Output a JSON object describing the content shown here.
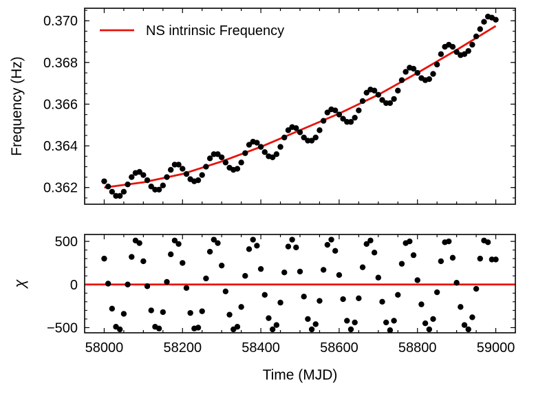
{
  "chart_data": [
    {
      "type": "line",
      "xlabel": "",
      "ylabel": "Frequency (Hz)",
      "xlim": [
        57950,
        59050
      ],
      "ylim": [
        0.3612,
        0.3706
      ],
      "yticks": [
        0.362,
        0.364,
        0.366,
        0.368,
        0.37
      ],
      "ytick_labels": [
        "0.362",
        "0.364",
        "0.366",
        "0.368",
        "0.370"
      ],
      "legend": {
        "position": "top-left",
        "entries": [
          "NS intrinsic Frequency"
        ]
      },
      "grid": false,
      "series": [
        {
          "name": "NS intrinsic Frequency",
          "kind": "line",
          "color": "#e8120c",
          "x": [
            58000,
            58100,
            58200,
            58300,
            58400,
            58500,
            58600,
            58700,
            58800,
            58900,
            59000
          ],
          "y": [
            0.362,
            0.36225,
            0.36265,
            0.36325,
            0.36395,
            0.36475,
            0.36555,
            0.36645,
            0.3675,
            0.3686,
            0.36975
          ]
        },
        {
          "kind": "scatter",
          "color": "#000000",
          "x": [
            58000,
            58010,
            58020,
            58030,
            58040,
            58050,
            58060,
            58070,
            58080,
            58090,
            58100,
            58110,
            58120,
            58130,
            58140,
            58150,
            58160,
            58170,
            58180,
            58190,
            58200,
            58210,
            58220,
            58230,
            58240,
            58250,
            58260,
            58270,
            58280,
            58290,
            58300,
            58310,
            58320,
            58330,
            58340,
            58350,
            58360,
            58370,
            58380,
            58390,
            58400,
            58410,
            58420,
            58430,
            58440,
            58450,
            58460,
            58470,
            58480,
            58490,
            58500,
            58510,
            58520,
            58530,
            58540,
            58550,
            58560,
            58570,
            58580,
            58590,
            58600,
            58610,
            58620,
            58630,
            58640,
            58650,
            58660,
            58670,
            58680,
            58690,
            58700,
            58710,
            58720,
            58730,
            58740,
            58750,
            58760,
            58770,
            58780,
            58790,
            58800,
            58810,
            58820,
            58830,
            58840,
            58850,
            58860,
            58870,
            58880,
            58890,
            58900,
            58910,
            58920,
            58930,
            58940,
            58950,
            58960,
            58970,
            58980,
            58990,
            59000
          ],
          "y": [
            0.3623,
            0.36205,
            0.3618,
            0.3616,
            0.3616,
            0.3618,
            0.36215,
            0.3625,
            0.3627,
            0.36275,
            0.3626,
            0.36235,
            0.36205,
            0.3619,
            0.3619,
            0.3621,
            0.3625,
            0.36285,
            0.3631,
            0.3631,
            0.3629,
            0.36265,
            0.3624,
            0.3623,
            0.36235,
            0.3626,
            0.363,
            0.3634,
            0.3636,
            0.3636,
            0.36345,
            0.3632,
            0.36295,
            0.36285,
            0.3629,
            0.3632,
            0.36365,
            0.36405,
            0.3642,
            0.36415,
            0.36395,
            0.3637,
            0.3635,
            0.36345,
            0.3636,
            0.36395,
            0.3644,
            0.36475,
            0.3649,
            0.36485,
            0.36465,
            0.3644,
            0.36425,
            0.36425,
            0.3644,
            0.36475,
            0.3652,
            0.3656,
            0.36575,
            0.3657,
            0.3655,
            0.3653,
            0.36515,
            0.36515,
            0.36535,
            0.3657,
            0.36615,
            0.36655,
            0.3667,
            0.36665,
            0.36645,
            0.3662,
            0.36605,
            0.36605,
            0.36625,
            0.36665,
            0.36715,
            0.36755,
            0.36775,
            0.3677,
            0.3675,
            0.36725,
            0.36715,
            0.3672,
            0.36745,
            0.3679,
            0.3684,
            0.36875,
            0.36885,
            0.36875,
            0.3685,
            0.36835,
            0.3684,
            0.36855,
            0.36885,
            0.36925,
            0.3696,
            0.36995,
            0.3702,
            0.37015,
            0.37005
          ]
        }
      ]
    },
    {
      "type": "scatter",
      "xlabel": "Time (MJD)",
      "ylabel": "χ",
      "xlim": [
        57950,
        59050
      ],
      "ylim": [
        -560,
        580
      ],
      "xticks": [
        58000,
        58200,
        58400,
        58600,
        58800,
        59000
      ],
      "xtick_labels": [
        "58000",
        "58200",
        "58400",
        "58600",
        "58800",
        "59000"
      ],
      "yticks": [
        -500,
        0,
        500
      ],
      "ytick_labels": [
        "−500",
        "0",
        "500"
      ],
      "grid": false,
      "hline": {
        "y": 0,
        "color": "#e8120c"
      },
      "series": [
        {
          "kind": "scatter",
          "color": "#000000",
          "x": [
            58000,
            58010,
            58020,
            58030,
            58040,
            58050,
            58060,
            58070,
            58080,
            58090,
            58100,
            58110,
            58120,
            58130,
            58140,
            58150,
            58160,
            58170,
            58180,
            58190,
            58200,
            58210,
            58220,
            58230,
            58240,
            58250,
            58260,
            58270,
            58280,
            58290,
            58300,
            58310,
            58320,
            58330,
            58340,
            58350,
            58360,
            58370,
            58380,
            58390,
            58400,
            58410,
            58420,
            58430,
            58440,
            58450,
            58460,
            58470,
            58480,
            58490,
            58500,
            58510,
            58520,
            58530,
            58540,
            58550,
            58560,
            58570,
            58580,
            58590,
            58600,
            58610,
            58620,
            58630,
            58640,
            58650,
            58660,
            58670,
            58680,
            58690,
            58700,
            58710,
            58720,
            58730,
            58740,
            58750,
            58760,
            58770,
            58780,
            58790,
            58800,
            58810,
            58820,
            58830,
            58840,
            58850,
            58860,
            58870,
            58880,
            58890,
            58900,
            58910,
            58920,
            58930,
            58940,
            58950,
            58960,
            58970,
            58980,
            58990,
            59000
          ],
          "y": [
            300,
            10,
            -280,
            -490,
            -520,
            -340,
            0,
            320,
            510,
            480,
            270,
            -20,
            -300,
            -490,
            -510,
            -320,
            30,
            350,
            510,
            470,
            250,
            -40,
            -330,
            -510,
            -500,
            -310,
            70,
            380,
            520,
            480,
            220,
            -80,
            -350,
            -520,
            -490,
            -260,
            100,
            410,
            520,
            450,
            180,
            -120,
            -390,
            -520,
            -470,
            -210,
            140,
            440,
            520,
            430,
            150,
            -140,
            -400,
            -520,
            -460,
            -190,
            170,
            460,
            520,
            390,
            110,
            -170,
            -420,
            -520,
            -440,
            -160,
            200,
            470,
            510,
            370,
            80,
            -200,
            -440,
            -530,
            -420,
            -120,
            240,
            480,
            500,
            340,
            50,
            -230,
            -450,
            -520,
            -400,
            -90,
            270,
            490,
            500,
            310,
            20,
            -260,
            -470,
            -520,
            -380,
            -50,
            300,
            510,
            490,
            290,
            290
          ]
        }
      ]
    }
  ]
}
